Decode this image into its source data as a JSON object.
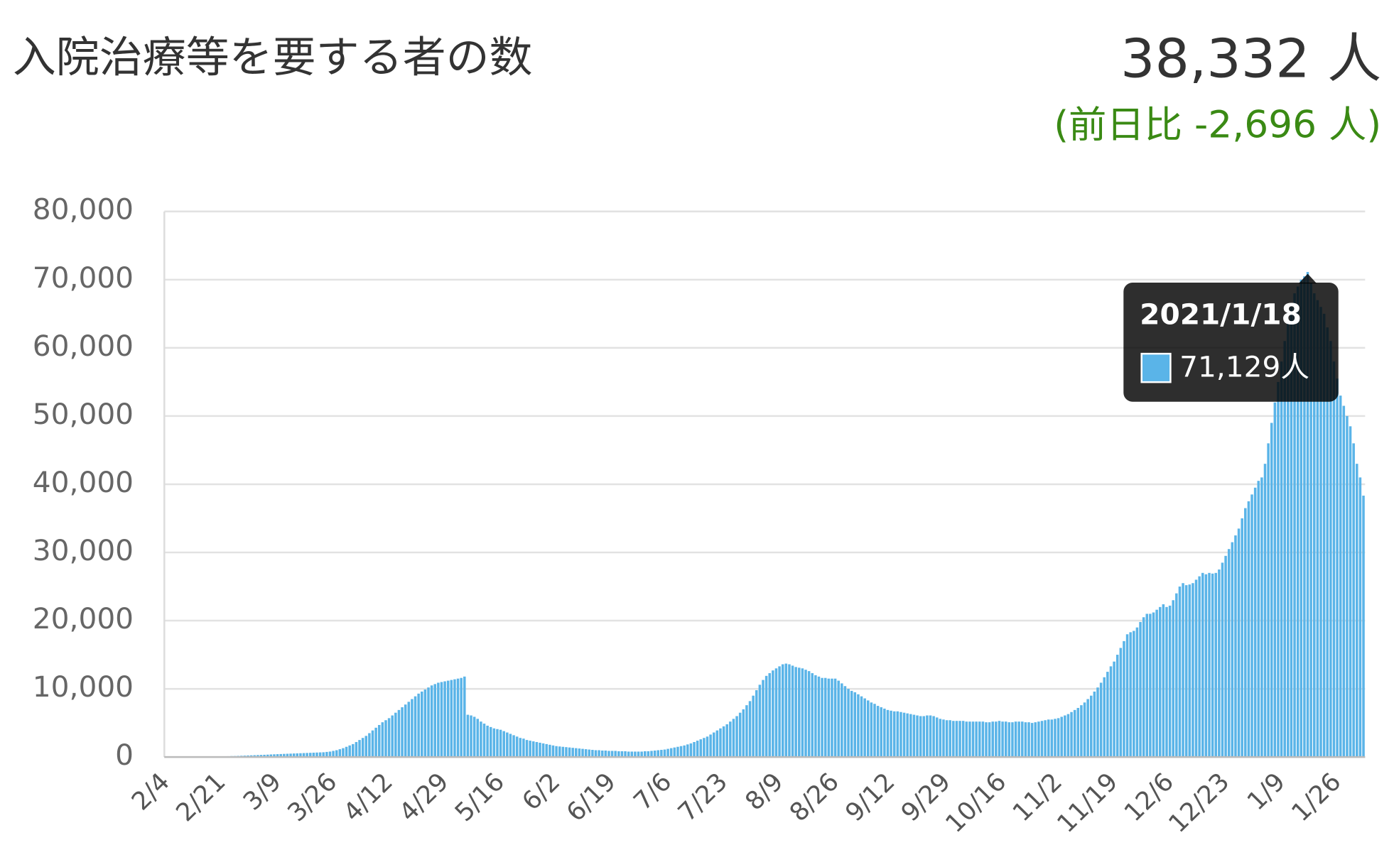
{
  "header": {
    "title": "入院治療等を要する者の数",
    "value": "38,332 人",
    "change": "(前日比 -2,696 人)"
  },
  "chart_data": {
    "type": "bar",
    "color": "#5ab4e8",
    "grid": true,
    "ylim": [
      0,
      80000
    ],
    "yticks": [
      0,
      {
        "value": 10000,
        "label": "10,000"
      },
      {
        "value": 20000,
        "label": "20,000"
      },
      {
        "value": 30000,
        "label": "30,000"
      },
      {
        "value": 40000,
        "label": "40,000"
      },
      {
        "value": 50000,
        "label": "50,000"
      },
      {
        "value": 60000,
        "label": "60,000"
      },
      {
        "value": 70000,
        "label": "70,000"
      },
      {
        "value": 80000,
        "label": "80,000"
      }
    ],
    "tooltip": {
      "title": "2021/1/18",
      "label": "71,129人"
    },
    "categories": [
      "2/4",
      null,
      null,
      null,
      null,
      null,
      null,
      null,
      null,
      null,
      null,
      null,
      null,
      null,
      null,
      null,
      null,
      "2/21",
      null,
      null,
      null,
      null,
      null,
      null,
      null,
      null,
      null,
      null,
      null,
      null,
      null,
      null,
      null,
      null,
      "3/9",
      null,
      null,
      null,
      null,
      null,
      null,
      null,
      null,
      null,
      null,
      null,
      null,
      null,
      null,
      null,
      null,
      "3/26",
      null,
      null,
      null,
      null,
      null,
      null,
      null,
      null,
      null,
      null,
      null,
      null,
      null,
      null,
      null,
      null,
      "4/12",
      null,
      null,
      null,
      null,
      null,
      null,
      null,
      null,
      null,
      null,
      null,
      null,
      null,
      null,
      null,
      null,
      "4/29",
      null,
      null,
      null,
      null,
      null,
      null,
      null,
      null,
      null,
      null,
      null,
      null,
      null,
      null,
      null,
      null,
      "5/16",
      null,
      null,
      null,
      null,
      null,
      null,
      null,
      null,
      null,
      null,
      null,
      null,
      null,
      null,
      null,
      null,
      "6/2",
      null,
      null,
      null,
      null,
      null,
      null,
      null,
      null,
      null,
      null,
      null,
      null,
      null,
      null,
      null,
      null,
      "6/19",
      null,
      null,
      null,
      null,
      null,
      null,
      null,
      null,
      null,
      null,
      null,
      null,
      null,
      null,
      null,
      null,
      "7/6",
      null,
      null,
      null,
      null,
      null,
      null,
      null,
      null,
      null,
      null,
      null,
      null,
      null,
      null,
      null,
      null,
      "7/23",
      null,
      null,
      null,
      null,
      null,
      null,
      null,
      null,
      null,
      null,
      null,
      null,
      null,
      null,
      null,
      null,
      "8/9",
      null,
      null,
      null,
      null,
      null,
      null,
      null,
      null,
      null,
      null,
      null,
      null,
      null,
      null,
      null,
      null,
      "8/26",
      null,
      null,
      null,
      null,
      null,
      null,
      null,
      null,
      null,
      null,
      null,
      null,
      null,
      null,
      null,
      null,
      "9/12",
      null,
      null,
      null,
      null,
      null,
      null,
      null,
      null,
      null,
      null,
      null,
      null,
      null,
      null,
      null,
      null,
      "9/29",
      null,
      null,
      null,
      null,
      null,
      null,
      null,
      null,
      null,
      null,
      null,
      null,
      null,
      null,
      null,
      null,
      "10/16",
      null,
      null,
      null,
      null,
      null,
      null,
      null,
      null,
      null,
      null,
      null,
      null,
      null,
      null,
      null,
      null,
      "11/2",
      null,
      null,
      null,
      null,
      null,
      null,
      null,
      null,
      null,
      null,
      null,
      null,
      null,
      null,
      null,
      null,
      "11/19",
      null,
      null,
      null,
      null,
      null,
      null,
      null,
      null,
      null,
      null,
      null,
      null,
      null,
      null,
      null,
      null,
      "12/6",
      null,
      null,
      null,
      null,
      null,
      null,
      null,
      null,
      null,
      null,
      null,
      null,
      null,
      null,
      null,
      null,
      "12/23",
      null,
      null,
      null,
      null,
      null,
      null,
      null,
      null,
      null,
      null,
      null,
      null,
      null,
      null,
      null,
      null,
      "1/9",
      null,
      null,
      null,
      null,
      null,
      null,
      null,
      null,
      null,
      null,
      null,
      null,
      null,
      null,
      null,
      null,
      "1/26",
      null,
      null,
      null,
      null,
      null,
      null,
      null,
      null
    ],
    "values": [
      0,
      0,
      0,
      0,
      10,
      10,
      20,
      20,
      30,
      30,
      40,
      40,
      50,
      60,
      70,
      80,
      90,
      100,
      110,
      120,
      140,
      150,
      170,
      190,
      210,
      230,
      250,
      270,
      290,
      310,
      330,
      350,
      380,
      400,
      420,
      440,
      460,
      480,
      500,
      520,
      540,
      560,
      580,
      600,
      620,
      640,
      660,
      680,
      700,
      750,
      800,
      900,
      1000,
      1150,
      1300,
      1500,
      1700,
      1900,
      2200,
      2500,
      2800,
      3100,
      3500,
      3900,
      4300,
      4700,
      5100,
      5400,
      5700,
      6100,
      6500,
      6900,
      7300,
      7700,
      8100,
      8500,
      8900,
      9300,
      9600,
      9900,
      10200,
      10500,
      10700,
      10900,
      11000,
      11100,
      11200,
      11300,
      11400,
      11500,
      11600,
      11800,
      6200,
      6100,
      5900,
      5600,
      5200,
      4900,
      4600,
      4400,
      4200,
      4100,
      4000,
      3800,
      3600,
      3400,
      3200,
      3000,
      2800,
      2700,
      2500,
      2400,
      2300,
      2200,
      2100,
      2000,
      1900,
      1800,
      1700,
      1600,
      1550,
      1500,
      1450,
      1400,
      1350,
      1300,
      1250,
      1200,
      1150,
      1100,
      1050,
      1000,
      1000,
      950,
      950,
      900,
      900,
      900,
      850,
      850,
      850,
      800,
      800,
      800,
      800,
      800,
      850,
      850,
      900,
      950,
      1000,
      1050,
      1100,
      1200,
      1300,
      1400,
      1500,
      1600,
      1700,
      1850,
      2000,
      2200,
      2400,
      2600,
      2800,
      3000,
      3300,
      3600,
      3900,
      4200,
      4500,
      4800,
      5200,
      5600,
      6000,
      6500,
      7000,
      7600,
      8200,
      9000,
      9800,
      10600,
      11300,
      11900,
      12300,
      12700,
      13000,
      13300,
      13600,
      13700,
      13600,
      13400,
      13200,
      13100,
      13000,
      12800,
      12600,
      12300,
      12000,
      11800,
      11600,
      11600,
      11500,
      11500,
      11500,
      11200,
      10800,
      10400,
      10000,
      9700,
      9500,
      9200,
      8900,
      8600,
      8300,
      8000,
      7800,
      7500,
      7300,
      7100,
      6900,
      6800,
      6700,
      6700,
      6600,
      6500,
      6400,
      6300,
      6200,
      6100,
      6000,
      6000,
      6100,
      6100,
      6000,
      5800,
      5600,
      5500,
      5400,
      5400,
      5300,
      5300,
      5300,
      5300,
      5200,
      5200,
      5200,
      5200,
      5200,
      5200,
      5100,
      5100,
      5200,
      5200,
      5300,
      5200,
      5200,
      5100,
      5100,
      5200,
      5200,
      5200,
      5100,
      5100,
      5000,
      5100,
      5200,
      5300,
      5400,
      5500,
      5500,
      5600,
      5700,
      5900,
      6100,
      6300,
      6600,
      6900,
      7200,
      7600,
      8000,
      8500,
      9000,
      9600,
      10200,
      10900,
      11700,
      12500,
      13300,
      14000,
      15000,
      16000,
      17000,
      18000,
      18300,
      18500,
      19000,
      19800,
      20500,
      21000,
      21000,
      21200,
      21600,
      22000,
      22400,
      22000,
      22200,
      23000,
      24000,
      25000,
      25500,
      25200,
      25300,
      25500,
      26000,
      26500,
      27000,
      26800,
      27000,
      26900,
      27000,
      27500,
      28500,
      29500,
      30500,
      31500,
      32500,
      33500,
      35000,
      36500,
      37500,
      38500,
      39500,
      40500,
      41000,
      43000,
      46000,
      49000,
      52000,
      55000,
      58000,
      61000,
      64000,
      66000,
      68000,
      69000,
      70000,
      70500,
      71129,
      69500,
      68000,
      67000,
      66000,
      65000,
      63000,
      61000,
      58000,
      55500,
      53000,
      51500,
      50000,
      48500,
      46000,
      43000,
      41000,
      38332
    ]
  }
}
